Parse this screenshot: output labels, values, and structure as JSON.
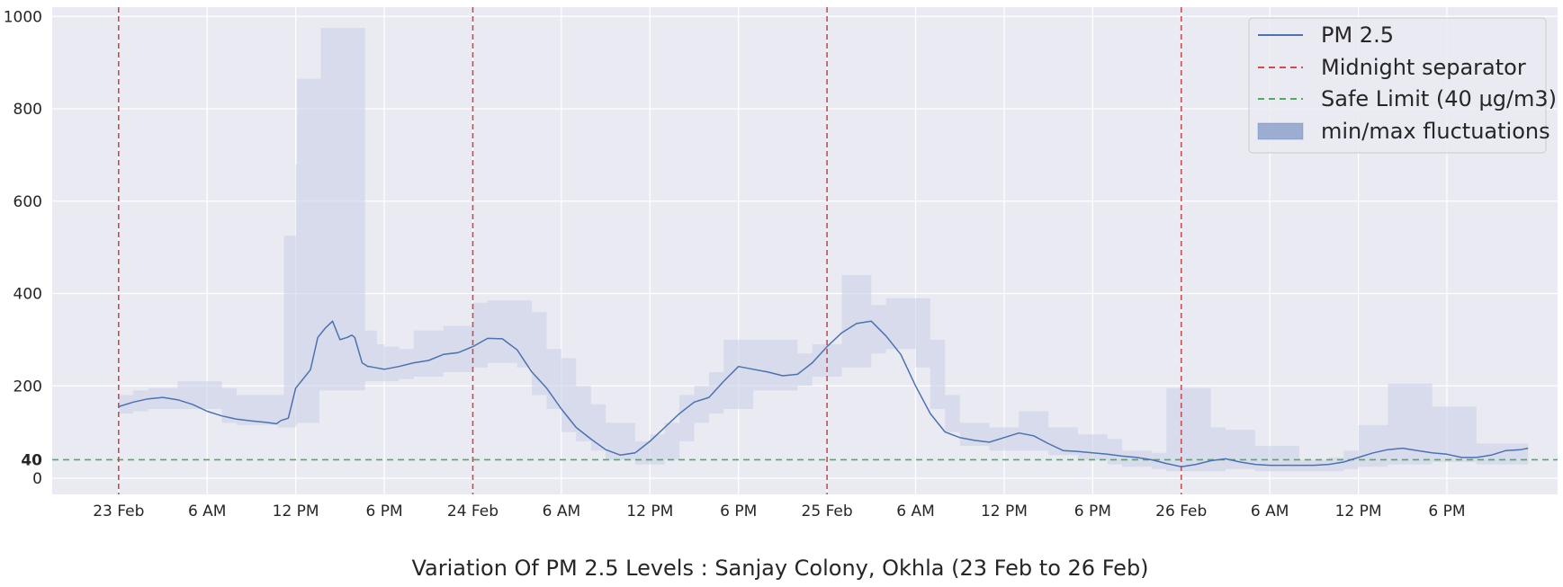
{
  "chart_data": {
    "type": "line",
    "title": "Variation Of PM 2.5 Levels : Sanjay Colony, Okhla (23 Feb to 26 Feb)",
    "xlabel": "",
    "ylabel": "",
    "x_unit": "hours since 23 Feb 00:00",
    "xlim": [
      -4.5,
      97.5
    ],
    "ylim": [
      -35,
      1020
    ],
    "grid": true,
    "legend_position": "top-right",
    "x_ticks": [
      {
        "x": 0,
        "label": "23 Feb"
      },
      {
        "x": 6,
        "label": "6 AM"
      },
      {
        "x": 12,
        "label": "12 PM"
      },
      {
        "x": 18,
        "label": "6 PM"
      },
      {
        "x": 24,
        "label": "24 Feb"
      },
      {
        "x": 30,
        "label": "6 AM"
      },
      {
        "x": 36,
        "label": "12 PM"
      },
      {
        "x": 42,
        "label": "6 PM"
      },
      {
        "x": 48,
        "label": "25 Feb"
      },
      {
        "x": 54,
        "label": "6 AM"
      },
      {
        "x": 60,
        "label": "12 PM"
      },
      {
        "x": 66,
        "label": "6 PM"
      },
      {
        "x": 72,
        "label": "26 Feb"
      },
      {
        "x": 78,
        "label": "6 AM"
      },
      {
        "x": 84,
        "label": "12 PM"
      },
      {
        "x": 90,
        "label": "6 PM"
      }
    ],
    "y_ticks": [
      {
        "y": 0,
        "label": "0",
        "highlight": false
      },
      {
        "y": 40,
        "label": "40",
        "highlight": true
      },
      {
        "y": 200,
        "label": "200",
        "highlight": false
      },
      {
        "y": 400,
        "label": "400",
        "highlight": false
      },
      {
        "y": 600,
        "label": "600",
        "highlight": false
      },
      {
        "y": 800,
        "label": "800",
        "highlight": false
      },
      {
        "y": 1000,
        "label": "1000",
        "highlight": false
      }
    ],
    "midnight_separators": [
      0,
      24,
      48,
      72
    ],
    "safe_limit": 40,
    "legend": [
      {
        "label": "PM 2.5",
        "kind": "line",
        "color": "#4c72b0"
      },
      {
        "label": "Midnight separator",
        "kind": "dashed",
        "color": "#c44e52"
      },
      {
        "label": "Safe Limit (40 µg/m3)",
        "kind": "dashed",
        "color": "#55a868"
      },
      {
        "label": "min/max fluctuations",
        "kind": "patch",
        "color": "#4c72b0"
      }
    ],
    "series": [
      {
        "name": "PM 2.5",
        "color": "#4c72b0",
        "x": [
          0,
          1,
          2,
          3,
          4,
          5,
          6,
          7,
          8,
          9,
          10,
          10.7,
          11,
          11.5,
          12,
          12.5,
          13,
          13.5,
          14,
          14.5,
          15,
          15.5,
          15.8,
          16,
          16.5,
          16.9,
          17,
          17.3,
          18,
          19,
          20,
          21,
          22,
          23,
          24,
          25,
          26,
          27,
          28,
          29,
          30,
          31,
          32,
          33,
          34,
          35,
          36,
          37,
          38,
          39,
          40,
          41,
          42,
          43,
          44,
          45,
          46,
          47,
          48,
          49,
          50,
          51,
          52,
          53,
          54,
          55,
          56,
          57,
          58,
          59,
          60,
          61,
          62,
          63,
          64,
          65,
          66,
          67,
          68,
          69,
          70,
          71,
          72,
          73,
          74,
          75,
          76,
          77,
          78,
          79,
          80,
          81,
          82,
          83,
          84,
          85,
          86,
          87,
          88,
          89,
          90,
          91,
          92,
          93,
          94,
          95,
          95.5
        ],
        "y": [
          155,
          165,
          172,
          175,
          170,
          160,
          145,
          135,
          128,
          124,
          121,
          118,
          125,
          130,
          195,
          215,
          235,
          305,
          325,
          340,
          300,
          305,
          310,
          305,
          250,
          242,
          242,
          240,
          236,
          242,
          250,
          255,
          268,
          272,
          285,
          303,
          302,
          278,
          230,
          195,
          150,
          110,
          85,
          62,
          50,
          55,
          80,
          110,
          140,
          165,
          175,
          210,
          242,
          236,
          230,
          222,
          225,
          250,
          285,
          315,
          335,
          340,
          308,
          268,
          200,
          140,
          100,
          88,
          82,
          78,
          88,
          98,
          92,
          75,
          60,
          58,
          55,
          52,
          48,
          45,
          40,
          32,
          25,
          30,
          38,
          42,
          35,
          30,
          28,
          28,
          28,
          28,
          30,
          35,
          45,
          55,
          62,
          65,
          60,
          55,
          52,
          45,
          45,
          50,
          60,
          62,
          65
        ],
        "band_steps": [
          [
            0,
            140,
            180
          ],
          [
            1,
            145,
            190
          ],
          [
            2,
            150,
            195
          ],
          [
            4,
            150,
            210
          ],
          [
            7,
            120,
            195
          ],
          [
            8,
            115,
            180
          ],
          [
            10.8,
            110,
            180
          ],
          [
            11.2,
            110,
            525
          ],
          [
            12,
            115,
            680
          ],
          [
            12.1,
            120,
            865
          ],
          [
            13.6,
            190,
            865
          ],
          [
            13.7,
            190,
            975
          ],
          [
            16.6,
            190,
            975
          ],
          [
            16.7,
            210,
            320
          ],
          [
            17.5,
            210,
            290
          ],
          [
            18,
            210,
            285
          ],
          [
            19,
            215,
            280
          ],
          [
            20,
            220,
            320
          ],
          [
            22,
            230,
            330
          ],
          [
            24,
            240,
            380
          ],
          [
            25,
            250,
            385
          ],
          [
            27,
            240,
            385
          ],
          [
            28,
            180,
            360
          ],
          [
            29,
            150,
            280
          ],
          [
            30,
            100,
            260
          ],
          [
            31,
            80,
            200
          ],
          [
            32,
            60,
            160
          ],
          [
            33,
            40,
            120
          ],
          [
            35,
            30,
            80
          ],
          [
            36,
            30,
            95
          ],
          [
            37,
            40,
            120
          ],
          [
            38,
            80,
            180
          ],
          [
            39,
            120,
            200
          ],
          [
            40,
            140,
            230
          ],
          [
            41,
            150,
            300
          ],
          [
            43,
            190,
            300
          ],
          [
            46,
            200,
            270
          ],
          [
            47,
            220,
            290
          ],
          [
            48,
            220,
            290
          ],
          [
            49,
            240,
            440
          ],
          [
            51,
            270,
            375
          ],
          [
            52,
            280,
            390
          ],
          [
            54,
            240,
            390
          ],
          [
            55,
            150,
            300
          ],
          [
            56,
            100,
            180
          ],
          [
            57,
            70,
            120
          ],
          [
            59,
            60,
            110
          ],
          [
            61,
            60,
            145
          ],
          [
            63,
            50,
            110
          ],
          [
            65,
            40,
            95
          ],
          [
            67,
            30,
            85
          ],
          [
            68,
            25,
            60
          ],
          [
            70,
            20,
            55
          ],
          [
            71,
            15,
            195
          ],
          [
            74,
            15,
            110
          ],
          [
            75,
            20,
            105
          ],
          [
            77,
            15,
            70
          ],
          [
            80,
            15,
            40
          ],
          [
            82,
            15,
            45
          ],
          [
            83,
            20,
            60
          ],
          [
            84,
            25,
            115
          ],
          [
            86,
            30,
            205
          ],
          [
            89,
            35,
            155
          ],
          [
            92,
            30,
            75
          ],
          [
            95.5,
            30,
            75
          ]
        ]
      }
    ]
  }
}
